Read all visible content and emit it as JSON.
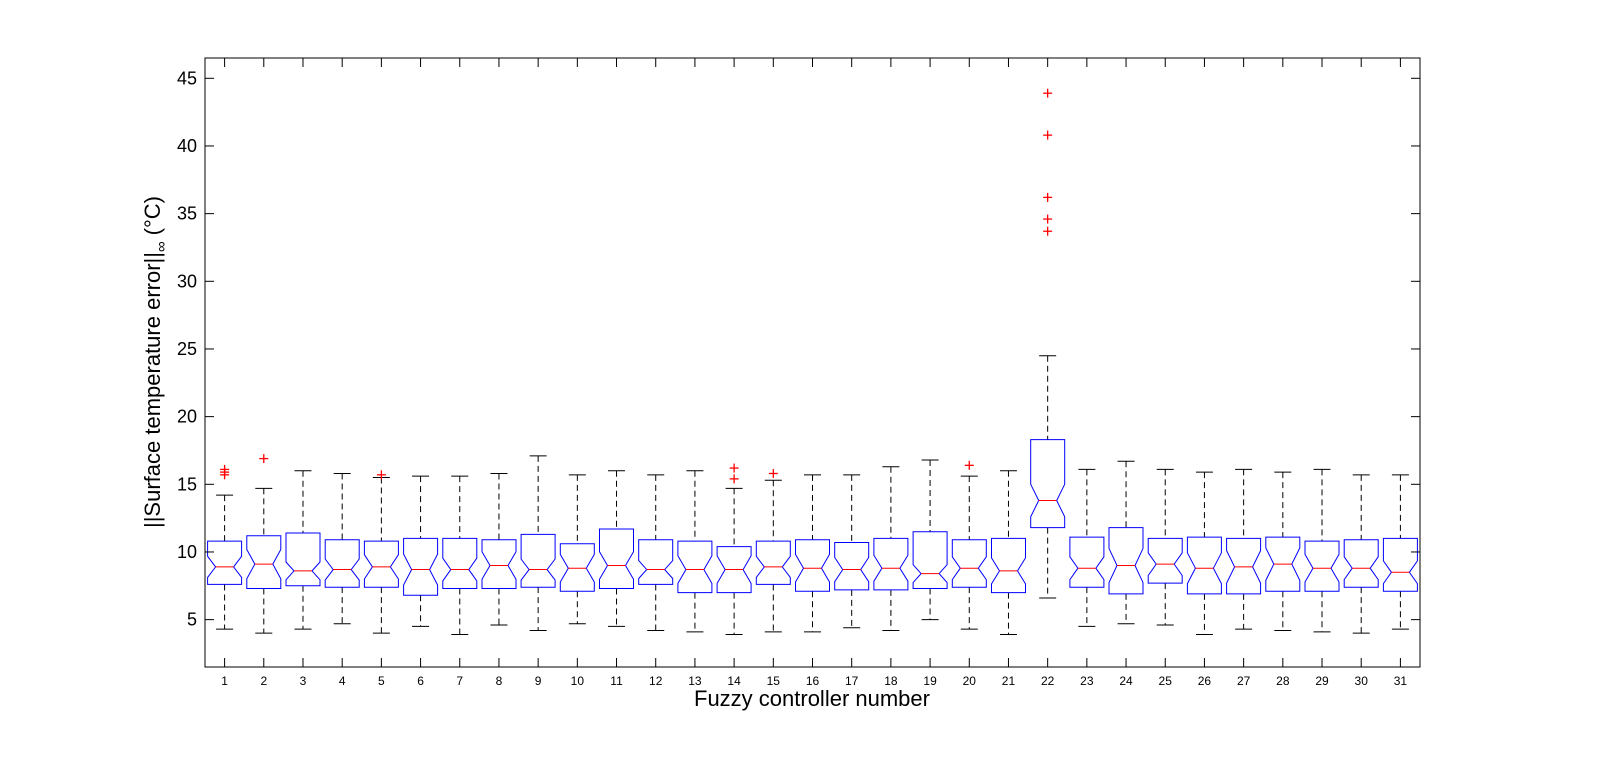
{
  "chart_data": {
    "type": "boxplot",
    "notched": true,
    "xlabel": "Fuzzy controller number",
    "ylabel": {
      "main": "||Surface temperature error||",
      "subscript": "∞",
      "unit": "(°C)"
    },
    "ylim": [
      1.5,
      46.5
    ],
    "y_ticks": [
      5,
      10,
      15,
      20,
      25,
      30,
      35,
      40,
      45
    ],
    "x_range": [
      0.5,
      31.5
    ],
    "grid": false,
    "colors": {
      "box": "#0000ff",
      "median": "#ff0000",
      "whisker": "#000000",
      "outlier": "#ff0000",
      "axes": "#000000"
    },
    "categories": [
      "1",
      "2",
      "3",
      "4",
      "5",
      "6",
      "7",
      "8",
      "9",
      "10",
      "11",
      "12",
      "13",
      "14",
      "15",
      "16",
      "17",
      "18",
      "19",
      "20",
      "21",
      "22",
      "23",
      "24",
      "25",
      "26",
      "27",
      "28",
      "29",
      "30",
      "31"
    ],
    "boxes": [
      {
        "q1": 7.6,
        "median": 8.9,
        "q3": 10.8,
        "whisker_low": 4.3,
        "whisker_high": 14.2,
        "outliers": [
          15.7,
          15.9,
          16.1
        ]
      },
      {
        "q1": 7.3,
        "median": 9.1,
        "q3": 11.2,
        "whisker_low": 4.0,
        "whisker_high": 14.7,
        "outliers": [
          16.9
        ]
      },
      {
        "q1": 7.5,
        "median": 8.6,
        "q3": 11.4,
        "whisker_low": 4.3,
        "whisker_high": 16.0,
        "outliers": []
      },
      {
        "q1": 7.4,
        "median": 8.7,
        "q3": 10.9,
        "whisker_low": 4.7,
        "whisker_high": 15.8,
        "outliers": []
      },
      {
        "q1": 7.4,
        "median": 8.9,
        "q3": 10.8,
        "whisker_low": 4.0,
        "whisker_high": 15.5,
        "outliers": [
          15.7
        ]
      },
      {
        "q1": 6.8,
        "median": 8.7,
        "q3": 11.0,
        "whisker_low": 4.5,
        "whisker_high": 15.6,
        "outliers": []
      },
      {
        "q1": 7.3,
        "median": 8.7,
        "q3": 11.0,
        "whisker_low": 3.9,
        "whisker_high": 15.6,
        "outliers": []
      },
      {
        "q1": 7.3,
        "median": 9.0,
        "q3": 10.9,
        "whisker_low": 4.6,
        "whisker_high": 15.8,
        "outliers": []
      },
      {
        "q1": 7.4,
        "median": 8.7,
        "q3": 11.3,
        "whisker_low": 4.2,
        "whisker_high": 17.1,
        "outliers": []
      },
      {
        "q1": 7.1,
        "median": 8.8,
        "q3": 10.6,
        "whisker_low": 4.7,
        "whisker_high": 15.7,
        "outliers": []
      },
      {
        "q1": 7.3,
        "median": 9.0,
        "q3": 11.7,
        "whisker_low": 4.5,
        "whisker_high": 16.0,
        "outliers": []
      },
      {
        "q1": 7.6,
        "median": 8.7,
        "q3": 10.9,
        "whisker_low": 4.2,
        "whisker_high": 15.7,
        "outliers": []
      },
      {
        "q1": 7.0,
        "median": 8.7,
        "q3": 10.8,
        "whisker_low": 4.1,
        "whisker_high": 16.0,
        "outliers": []
      },
      {
        "q1": 7.0,
        "median": 8.7,
        "q3": 10.4,
        "whisker_low": 3.9,
        "whisker_high": 14.7,
        "outliers": [
          15.4,
          16.2
        ]
      },
      {
        "q1": 7.6,
        "median": 8.9,
        "q3": 10.8,
        "whisker_low": 4.1,
        "whisker_high": 15.3,
        "outliers": [
          15.8
        ]
      },
      {
        "q1": 7.1,
        "median": 8.8,
        "q3": 10.9,
        "whisker_low": 4.1,
        "whisker_high": 15.7,
        "outliers": []
      },
      {
        "q1": 7.2,
        "median": 8.7,
        "q3": 10.7,
        "whisker_low": 4.4,
        "whisker_high": 15.7,
        "outliers": []
      },
      {
        "q1": 7.2,
        "median": 8.8,
        "q3": 11.0,
        "whisker_low": 4.2,
        "whisker_high": 16.3,
        "outliers": []
      },
      {
        "q1": 7.3,
        "median": 8.4,
        "q3": 11.5,
        "whisker_low": 5.0,
        "whisker_high": 16.8,
        "outliers": []
      },
      {
        "q1": 7.4,
        "median": 8.8,
        "q3": 10.9,
        "whisker_low": 4.3,
        "whisker_high": 15.6,
        "outliers": [
          16.4
        ]
      },
      {
        "q1": 7.0,
        "median": 8.6,
        "q3": 11.0,
        "whisker_low": 3.9,
        "whisker_high": 16.0,
        "outliers": []
      },
      {
        "q1": 11.8,
        "median": 13.8,
        "q3": 18.3,
        "whisker_low": 6.6,
        "whisker_high": 24.5,
        "outliers": [
          33.7,
          34.6,
          36.2,
          40.8,
          43.9
        ]
      },
      {
        "q1": 7.4,
        "median": 8.8,
        "q3": 11.1,
        "whisker_low": 4.5,
        "whisker_high": 16.1,
        "outliers": []
      },
      {
        "q1": 6.9,
        "median": 9.0,
        "q3": 11.8,
        "whisker_low": 4.7,
        "whisker_high": 16.7,
        "outliers": []
      },
      {
        "q1": 7.7,
        "median": 9.1,
        "q3": 11.0,
        "whisker_low": 4.6,
        "whisker_high": 16.1,
        "outliers": []
      },
      {
        "q1": 6.9,
        "median": 8.8,
        "q3": 11.1,
        "whisker_low": 3.9,
        "whisker_high": 15.9,
        "outliers": []
      },
      {
        "q1": 6.9,
        "median": 8.9,
        "q3": 11.0,
        "whisker_low": 4.3,
        "whisker_high": 16.1,
        "outliers": []
      },
      {
        "q1": 7.1,
        "median": 9.1,
        "q3": 11.1,
        "whisker_low": 4.2,
        "whisker_high": 15.9,
        "outliers": []
      },
      {
        "q1": 7.1,
        "median": 8.8,
        "q3": 10.8,
        "whisker_low": 4.1,
        "whisker_high": 16.1,
        "outliers": []
      },
      {
        "q1": 7.4,
        "median": 8.8,
        "q3": 10.9,
        "whisker_low": 4.0,
        "whisker_high": 15.7,
        "outliers": []
      },
      {
        "q1": 7.1,
        "median": 8.5,
        "q3": 11.0,
        "whisker_low": 4.3,
        "whisker_high": 15.7,
        "outliers": []
      }
    ]
  }
}
